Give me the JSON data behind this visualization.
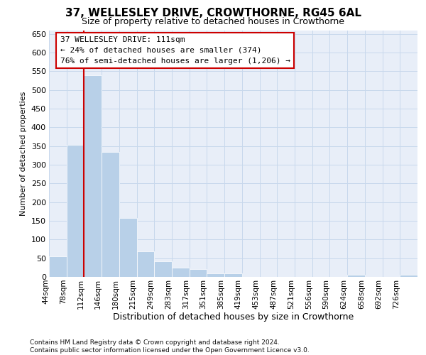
{
  "title": "37, WELLESLEY DRIVE, CROWTHORNE, RG45 6AL",
  "subtitle": "Size of property relative to detached houses in Crowthorne",
  "xlabel": "Distribution of detached houses by size in Crowthorne",
  "ylabel": "Number of detached properties",
  "bin_labels": [
    "44sqm",
    "78sqm",
    "112sqm",
    "146sqm",
    "180sqm",
    "215sqm",
    "249sqm",
    "283sqm",
    "317sqm",
    "351sqm",
    "385sqm",
    "419sqm",
    "453sqm",
    "487sqm",
    "521sqm",
    "556sqm",
    "590sqm",
    "624sqm",
    "658sqm",
    "692sqm",
    "726sqm"
  ],
  "bar_values": [
    55,
    353,
    540,
    335,
    158,
    68,
    42,
    25,
    20,
    10,
    10,
    0,
    0,
    0,
    0,
    0,
    0,
    5,
    0,
    0,
    5
  ],
  "bar_color": "#b8d0e8",
  "bar_edgecolor": "white",
  "grid_color": "#c8d8ec",
  "background_color": "#e8eef8",
  "red_line_x": 1.5,
  "annotation_line1": "37 WELLESLEY DRIVE: 111sqm",
  "annotation_line2": "← 24% of detached houses are smaller (374)",
  "annotation_line3": "76% of semi-detached houses are larger (1,206) →",
  "ann_box_color": "#cc0000",
  "ylim": [
    0,
    660
  ],
  "yticks": [
    0,
    50,
    100,
    150,
    200,
    250,
    300,
    350,
    400,
    450,
    500,
    550,
    600,
    650
  ],
  "title_fontsize": 11,
  "subtitle_fontsize": 9,
  "ylabel_fontsize": 8,
  "xlabel_fontsize": 9,
  "footnote_line1": "Contains HM Land Registry data © Crown copyright and database right 2024.",
  "footnote_line2": "Contains public sector information licensed under the Open Government Licence v3.0."
}
